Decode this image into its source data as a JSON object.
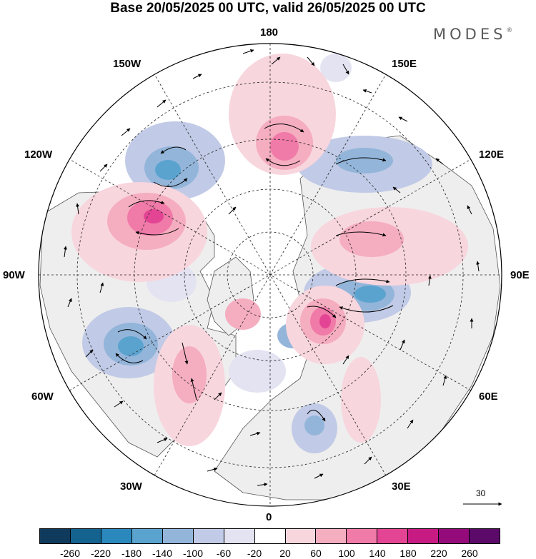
{
  "title": "Base 20/05/2025 00 UTC, valid 26/05/2025 00 UTC",
  "brand": "MODES",
  "brand_mark": "®",
  "longitude_labels": {
    "lon_180": "180",
    "lon_150W": "150W",
    "lon_150E": "150E",
    "lon_120W": "120W",
    "lon_120E": "120E",
    "lon_90W": "90W",
    "lon_90E": "90E",
    "lon_60W": "60W",
    "lon_60E": "60E",
    "lon_30W": "30W",
    "lon_30E": "30E",
    "lon_0": "0"
  },
  "reference_vector_label": "30",
  "colorbar": {
    "ticks": [
      "-260",
      "-220",
      "-180",
      "-140",
      "-100",
      "-60",
      "-20",
      "20",
      "60",
      "100",
      "140",
      "180",
      "220",
      "260"
    ],
    "colors": [
      "#0f3a5c",
      "#14628f",
      "#2a88bd",
      "#5ba3cf",
      "#93b5da",
      "#c1cae6",
      "#e4e3f2",
      "#ffffff",
      "#f8d6de",
      "#f5adc0",
      "#f07aa8",
      "#e34594",
      "#c71b83",
      "#950a7a",
      "#5c0a6a"
    ]
  },
  "map_data": {
    "projection": "north-polar-stereographic",
    "graticule": "30-degree meridians, dashed latitude circles",
    "shaded_field": "anomaly",
    "shading_colors": {
      "strong_negative": "#5ba3cf",
      "moderate_negative": "#93b5da",
      "weak_negative": "#c1cae6",
      "faint_negative": "#e4e3f2",
      "faint_positive": "#f8d6de",
      "weak_positive": "#f5adc0",
      "moderate_positive": "#f07aa8",
      "strong_positive": "#e34594",
      "land": "#eeeeee"
    }
  }
}
